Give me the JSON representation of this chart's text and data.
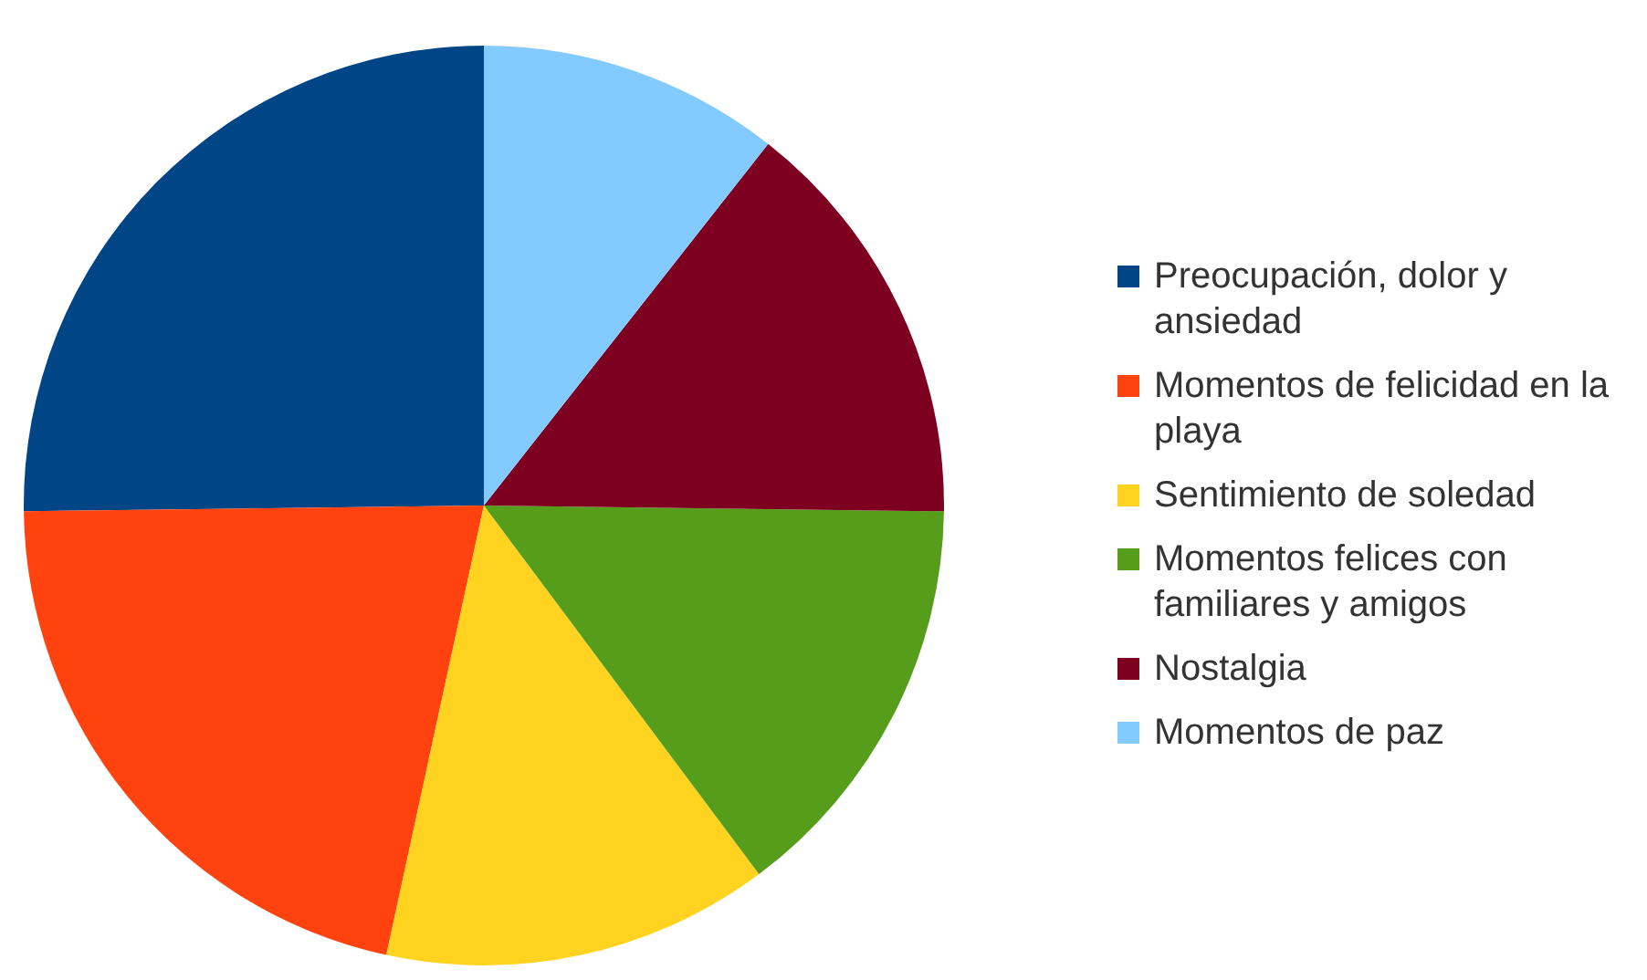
{
  "chart_data": {
    "type": "pie",
    "categories": [
      "Preocupación, dolor y ansiedad",
      "Momentos de felicidad en la playa",
      "Sentimiento de soledad",
      "Momentos felices con familiares y amigos",
      "Nostalgia",
      "Momentos de paz"
    ],
    "values": [
      25.2,
      21.4,
      13.6,
      14.6,
      14.6,
      10.6
    ],
    "colors": [
      "#004586",
      "#ff420e",
      "#ffd320",
      "#579d1c",
      "#7e0021",
      "#83caff"
    ],
    "legend": "right"
  }
}
